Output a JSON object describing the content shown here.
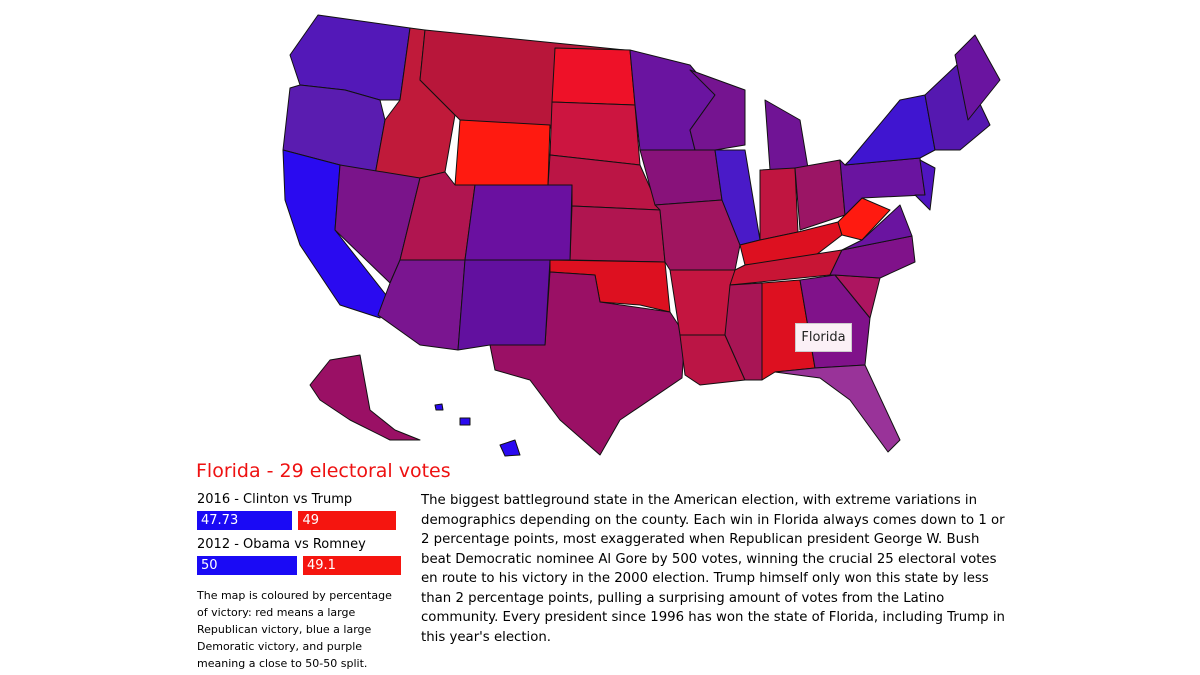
{
  "tooltip": "Florida",
  "title": "Florida - 29 electoral votes",
  "elections": [
    {
      "label": "2016 - Clinton vs Trump",
      "democrat": 47.73,
      "republican": 49
    },
    {
      "label": "2012 - Obama vs Romney",
      "democrat": 50,
      "republican": 49.1
    }
  ],
  "note": "The map is coloured by percentage of victory: red means a large Republican victory, blue a large Demoratic victory, and purple meaning a close to 50-50 split.",
  "description": "The biggest battleground state in the American election, with extreme variations in demographics depending on the county. Each win in Florida always comes down to 1 or 2 percentage points, most exaggerated when Republican president George W. Bush beat Democratic nominee Al Gore by 500 votes, winning the crucial 25 electoral votes en route to his victory in the 2000 election. Trump himself only won this state by less than 2 percentage points, pulling a surprising amount of votes from the Latino community. Every president since 1996 has won the state of Florida, including Trump in this year's election."
}
